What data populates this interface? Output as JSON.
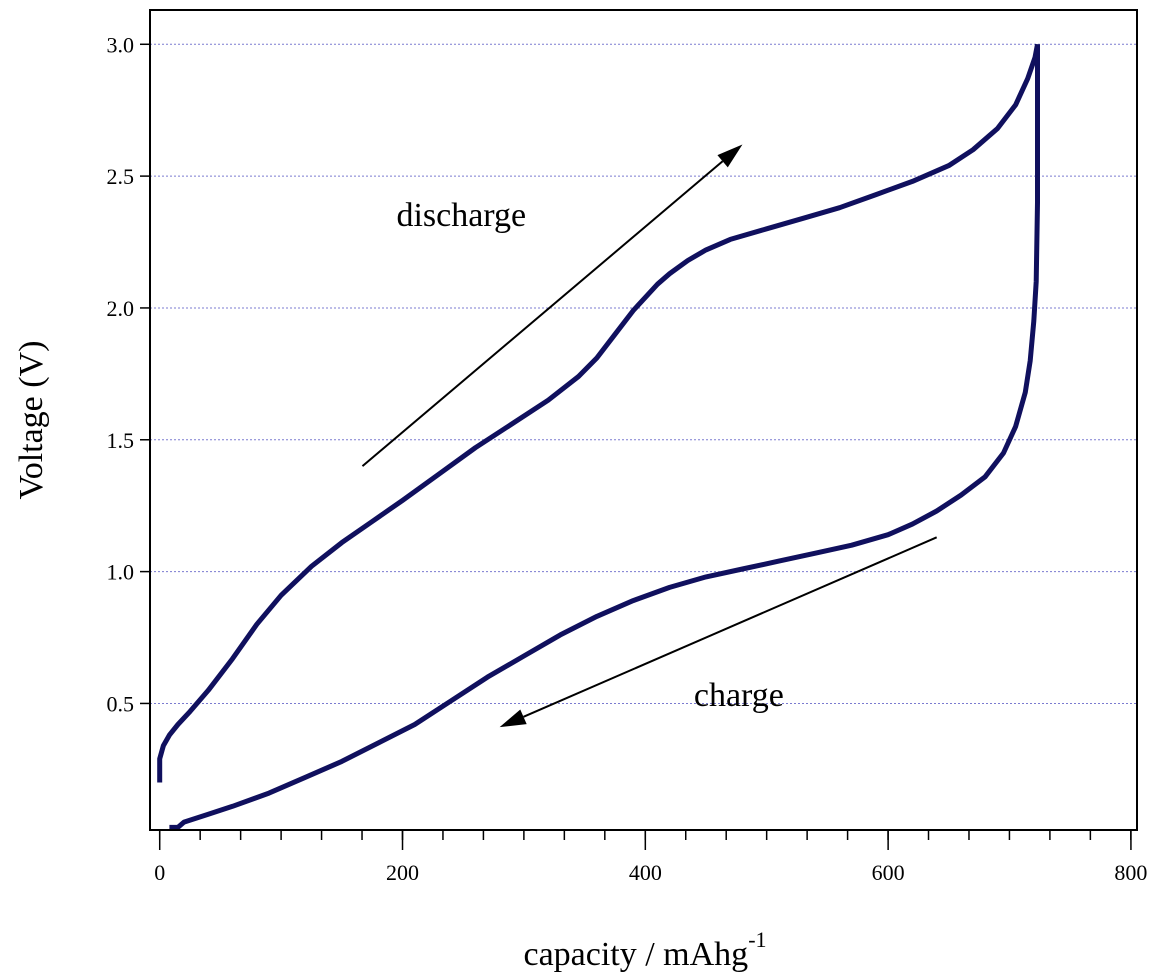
{
  "chart_data": {
    "type": "line",
    "xlabel": "capacity / mAhg",
    "xlabel_superscript": "-1",
    "ylabel": "Voltage (V)",
    "xlim": [
      -8,
      805
    ],
    "ylim": [
      0.02,
      3.13
    ],
    "x_ticks": [
      0,
      200,
      400,
      600,
      800
    ],
    "x_tick_labels": [
      "0",
      "200",
      "400",
      "600",
      "800"
    ],
    "x_minor_step": 33.33,
    "y_ticks": [
      0.5,
      1.0,
      1.5,
      2.0,
      2.5,
      3.0
    ],
    "y_tick_labels": [
      "0.5",
      "1.0",
      "1.5",
      "2.0",
      "2.5",
      "3.0"
    ],
    "grid": "horizontal dotted",
    "grid_color": "#7b7bd0",
    "line_color": "#10105e",
    "series": [
      {
        "x": [
          0,
          0,
          3,
          8,
          15,
          25,
          40,
          60,
          80,
          100,
          125,
          150,
          175,
          200,
          230,
          260,
          290,
          320,
          345,
          360,
          375,
          390,
          400,
          410,
          420,
          435,
          450,
          470,
          500,
          530,
          560,
          590,
          620,
          650,
          670,
          690,
          705,
          715,
          721,
          723
        ],
        "y": [
          0.2,
          0.29,
          0.34,
          0.38,
          0.42,
          0.47,
          0.55,
          0.67,
          0.8,
          0.91,
          1.02,
          1.11,
          1.19,
          1.27,
          1.37,
          1.47,
          1.56,
          1.65,
          1.74,
          1.81,
          1.9,
          1.99,
          2.04,
          2.09,
          2.13,
          2.18,
          2.22,
          2.26,
          2.3,
          2.34,
          2.38,
          2.43,
          2.48,
          2.54,
          2.6,
          2.68,
          2.77,
          2.87,
          2.95,
          3.0
        ]
      },
      {
        "x": [
          723,
          723,
          722,
          720,
          717,
          713,
          705,
          695,
          680,
          660,
          640,
          620,
          600,
          570,
          540,
          510,
          480,
          450,
          420,
          390,
          360,
          330,
          300,
          270,
          240,
          210,
          180,
          150,
          120,
          90,
          60,
          40,
          20,
          15,
          8
        ],
        "y": [
          3.0,
          2.4,
          2.1,
          1.95,
          1.8,
          1.68,
          1.55,
          1.45,
          1.36,
          1.29,
          1.23,
          1.18,
          1.14,
          1.1,
          1.07,
          1.04,
          1.01,
          0.98,
          0.94,
          0.89,
          0.83,
          0.76,
          0.68,
          0.6,
          0.51,
          0.42,
          0.35,
          0.28,
          0.22,
          0.16,
          0.11,
          0.08,
          0.05,
          0.03,
          0.03
        ]
      }
    ],
    "annotations": [
      {
        "text": "discharge",
        "x": 195,
        "y": 2.31,
        "anchor": "start"
      },
      {
        "text": "charge",
        "x": 440,
        "y": 0.49,
        "anchor": "start"
      }
    ],
    "arrows": [
      {
        "direction": "discharge",
        "from": [
          167,
          1.4
        ],
        "to": [
          480,
          2.62
        ]
      },
      {
        "direction": "charge",
        "from": [
          640,
          1.13
        ],
        "to": [
          280,
          0.41
        ]
      }
    ]
  }
}
